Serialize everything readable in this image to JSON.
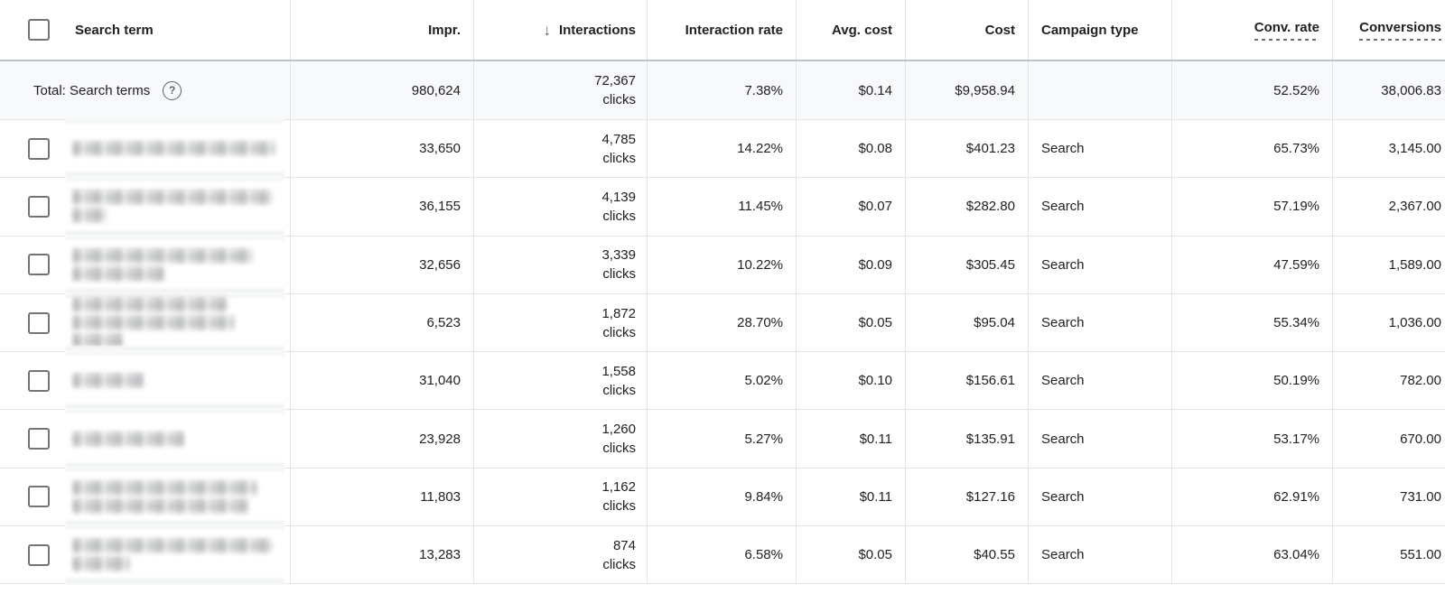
{
  "app": "Google Ads search terms report",
  "colors": {
    "text": "#202124",
    "muted": "#5f6368",
    "border_light": "#e3e4e6",
    "border_dark": "#bfc3c7",
    "total_row_bg": "#f8f9fa"
  },
  "header": {
    "search_term": "Search term",
    "impr": "Impr.",
    "interactions": "Interactions",
    "interactions_sort": "descending",
    "sort_arrow": "↓",
    "interaction_rate": "Interaction rate",
    "avg_cost": "Avg. cost",
    "cost": "Cost",
    "campaign_type": "Campaign type",
    "conv_rate": "Conv. rate",
    "conversions": "Conversions"
  },
  "total_row": {
    "label": "Total: Search terms",
    "help_icon": "?",
    "impr": "980,624",
    "interactions": "72,367",
    "interactions_unit": "clicks",
    "interaction_rate": "7.38%",
    "avg_cost": "$0.14",
    "cost": "$9,958.94",
    "campaign_type": "",
    "conv_rate": "52.52%",
    "conversions": "38,006.83"
  },
  "rows": [
    {
      "term_redacted": true,
      "redact_lines": [
        225
      ],
      "impr": "33,650",
      "interactions": "4,785",
      "interactions_unit": "clicks",
      "interaction_rate": "14.22%",
      "avg_cost": "$0.08",
      "cost": "$401.23",
      "campaign_type": "Search",
      "conv_rate": "65.73%",
      "conversions": "3,145.00"
    },
    {
      "term_redacted": true,
      "redact_lines": [
        222,
        38
      ],
      "impr": "36,155",
      "interactions": "4,139",
      "interactions_unit": "clicks",
      "interaction_rate": "11.45%",
      "avg_cost": "$0.07",
      "cost": "$282.80",
      "campaign_type": "Search",
      "conv_rate": "57.19%",
      "conversions": "2,367.00"
    },
    {
      "term_redacted": true,
      "redact_lines": [
        200,
        103
      ],
      "impr": "32,656",
      "interactions": "3,339",
      "interactions_unit": "clicks",
      "interaction_rate": "10.22%",
      "avg_cost": "$0.09",
      "cost": "$305.45",
      "campaign_type": "Search",
      "conv_rate": "47.59%",
      "conversions": "1,589.00"
    },
    {
      "term_redacted": true,
      "redact_lines": [
        172,
        180,
        57
      ],
      "impr": "6,523",
      "interactions": "1,872",
      "interactions_unit": "clicks",
      "interaction_rate": "28.70%",
      "avg_cost": "$0.05",
      "cost": "$95.04",
      "campaign_type": "Search",
      "conv_rate": "55.34%",
      "conversions": "1,036.00"
    },
    {
      "term_redacted": true,
      "redact_lines": [
        80
      ],
      "impr": "31,040",
      "interactions": "1,558",
      "interactions_unit": "clicks",
      "interaction_rate": "5.02%",
      "avg_cost": "$0.10",
      "cost": "$156.61",
      "campaign_type": "Search",
      "conv_rate": "50.19%",
      "conversions": "782.00"
    },
    {
      "term_redacted": true,
      "redact_lines": [
        124
      ],
      "impr": "23,928",
      "interactions": "1,260",
      "interactions_unit": "clicks",
      "interaction_rate": "5.27%",
      "avg_cost": "$0.11",
      "cost": "$135.91",
      "campaign_type": "Search",
      "conv_rate": "53.17%",
      "conversions": "670.00"
    },
    {
      "term_redacted": true,
      "redact_lines": [
        205,
        196
      ],
      "impr": "11,803",
      "interactions": "1,162",
      "interactions_unit": "clicks",
      "interaction_rate": "9.84%",
      "avg_cost": "$0.11",
      "cost": "$127.16",
      "campaign_type": "Search",
      "conv_rate": "62.91%",
      "conversions": "731.00"
    },
    {
      "term_redacted": true,
      "redact_lines": [
        222,
        64
      ],
      "impr": "13,283",
      "interactions": "874",
      "interactions_unit": "clicks",
      "interaction_rate": "6.58%",
      "avg_cost": "$0.05",
      "cost": "$40.55",
      "campaign_type": "Search",
      "conv_rate": "63.04%",
      "conversions": "551.00"
    }
  ]
}
